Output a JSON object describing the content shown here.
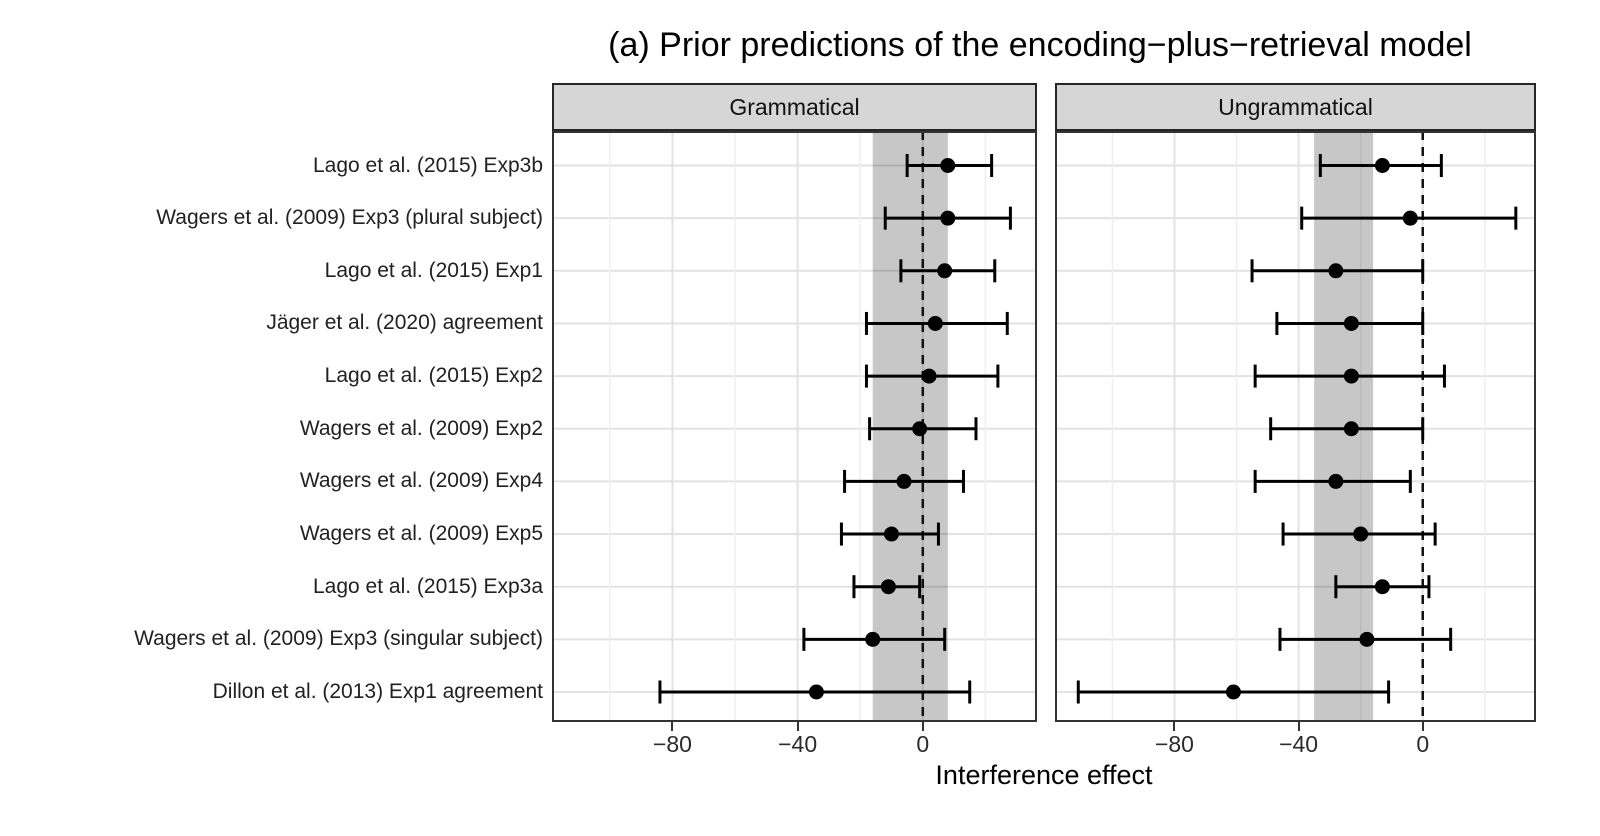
{
  "chart_data": {
    "type": "scatter",
    "subtype": "forest-plot-with-error-bars",
    "title": "(a) Prior predictions of the encoding−plus−retrieval model",
    "xlabel": "Interference effect",
    "xlim": [
      -118.5,
      36.5
    ],
    "x_ticks": [
      {
        "value": -80,
        "label": "−80"
      },
      {
        "value": -40,
        "label": "−40"
      },
      {
        "value": 0,
        "label": "0"
      }
    ],
    "x_minor_gridlines": [
      -100,
      -60,
      -20,
      20
    ],
    "zero_reference_line": 0,
    "grid": "on",
    "categories": [
      "Lago et al. (2015) Exp3b",
      "Wagers et al. (2009) Exp3 (plural subject)",
      "Lago et al. (2015) Exp1",
      "Jäger et al. (2020) agreement",
      "Lago et al. (2015) Exp2",
      "Wagers et al. (2009) Exp2",
      "Wagers et al. (2009) Exp4",
      "Wagers et al. (2009) Exp5",
      "Lago et al. (2015) Exp3a",
      "Wagers et al. (2009) Exp3 (singular subject)",
      "Dillon et al. (2013) Exp1 agreement"
    ],
    "facets": [
      {
        "label": "Grammatical",
        "prior_prediction_band": [
          -16,
          8
        ],
        "estimates": [
          8,
          8,
          7,
          4,
          2,
          -1,
          -6,
          -10,
          -11,
          -16,
          -34
        ],
        "ci_lower": [
          -5,
          -12,
          -7,
          -18,
          -18,
          -17,
          -25,
          -26,
          -22,
          -38,
          -84
        ],
        "ci_upper": [
          22,
          28,
          23,
          27,
          24,
          17,
          13,
          5,
          -1,
          7,
          15
        ]
      },
      {
        "label": "Ungrammatical",
        "prior_prediction_band": [
          -35,
          -16
        ],
        "estimates": [
          -13,
          -4,
          -28,
          -23,
          -23,
          -23,
          -28,
          -20,
          -13,
          -18,
          -61
        ],
        "ci_lower": [
          -33,
          -39,
          -55,
          -47,
          -54,
          -49,
          -54,
          -45,
          -28,
          -46,
          -111
        ],
        "ci_upper": [
          6,
          30,
          0,
          0,
          7,
          0,
          -4,
          4,
          2,
          9,
          -11
        ]
      }
    ],
    "colors": {
      "marker": "#000000",
      "error_bar": "#000000",
      "band": "rgba(0,0,0,0.22)",
      "strip_background": "#d6d6d6",
      "panel_border": "#333333",
      "gridline_major": "#e2e2e2",
      "gridline_minor": "#efefef",
      "zero_line": "#111111"
    }
  }
}
